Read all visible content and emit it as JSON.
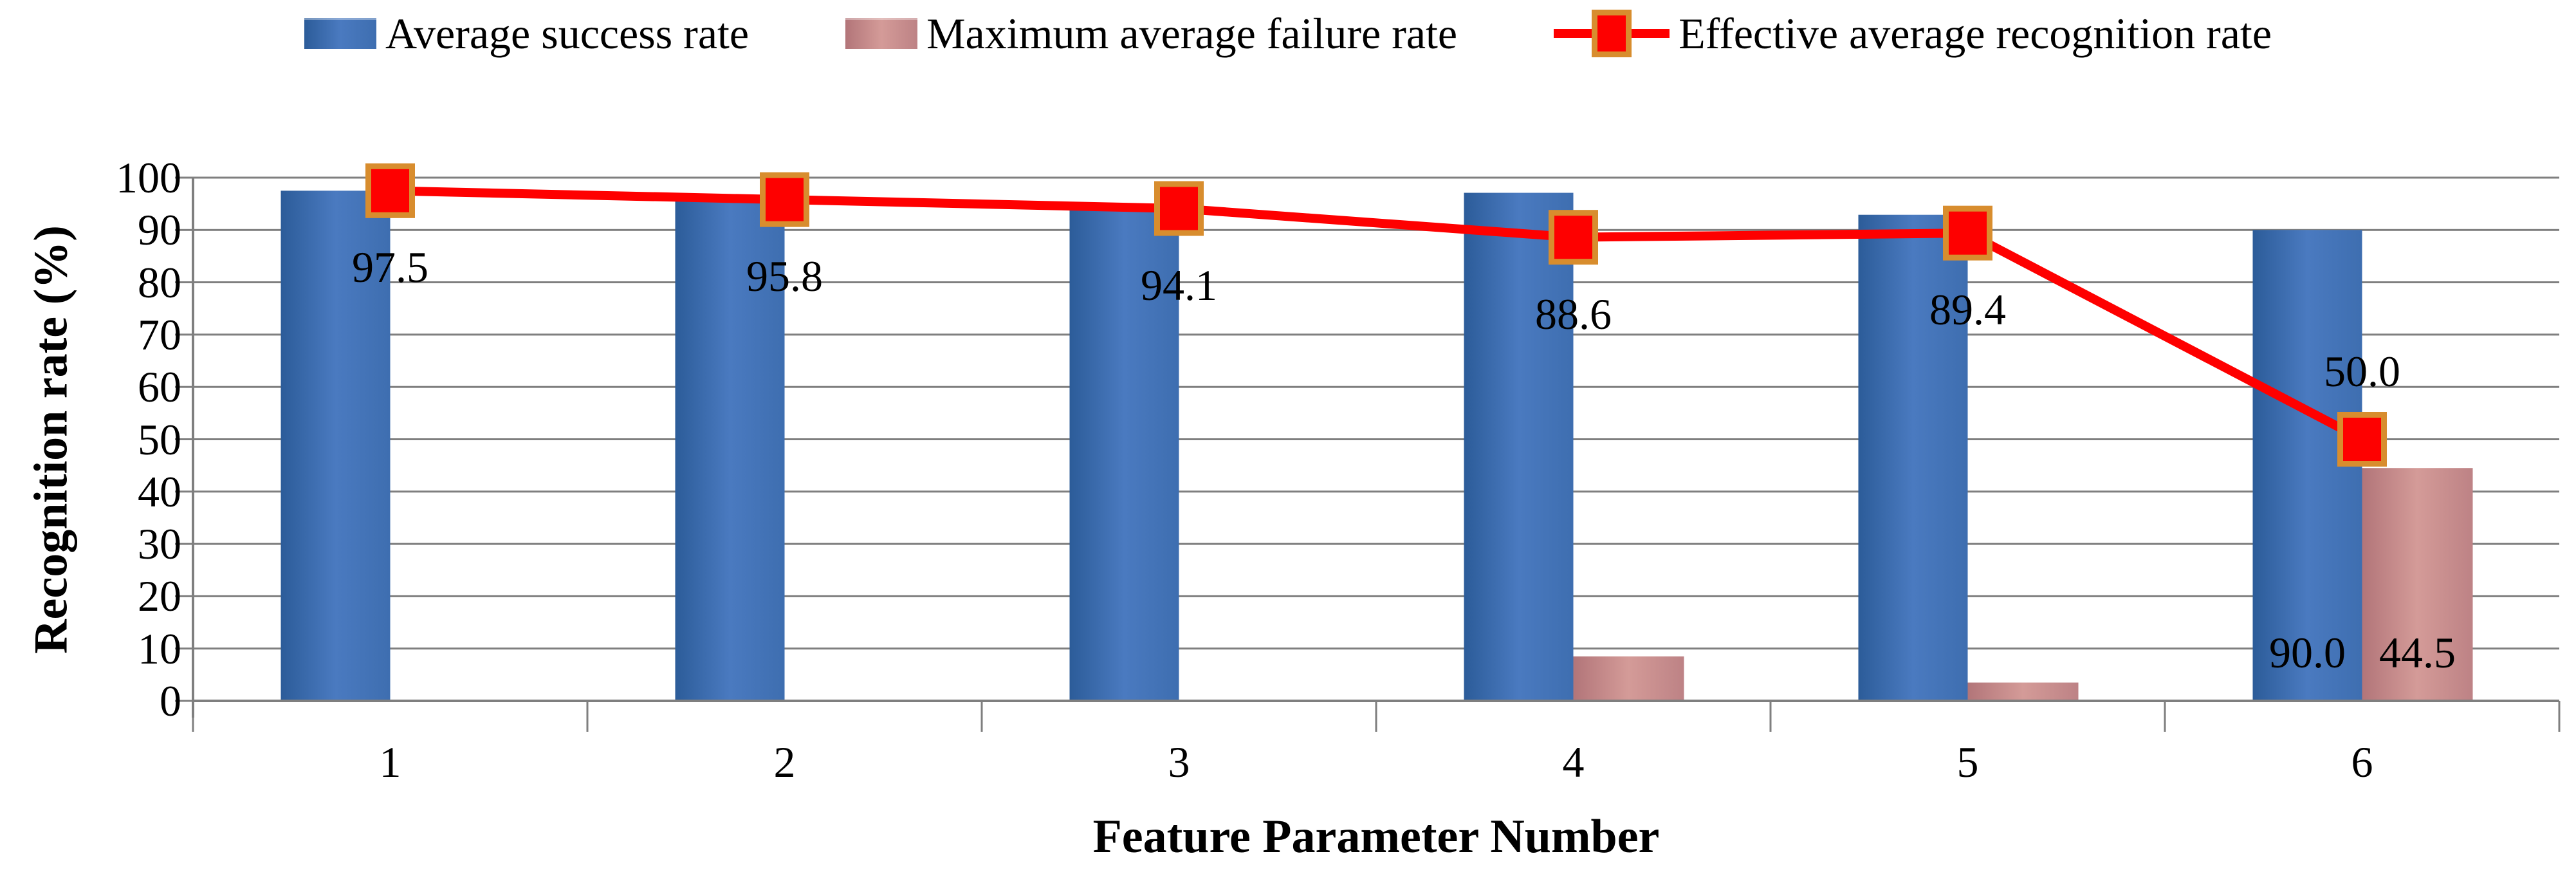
{
  "chart_data": {
    "type": "combo-bar-line",
    "categories": [
      "1",
      "2",
      "3",
      "4",
      "5",
      "6"
    ],
    "xlabel": "Feature Parameter Number",
    "ylabel": "Recognition rate (%)",
    "ylim": [
      0,
      100
    ],
    "ytick_step": 10,
    "grid": true,
    "legend_position": "top-center",
    "colors": {
      "gridline": "#7f7f7f",
      "axis": "#7f7f7f",
      "bar_blue": "#4a7ac0",
      "bar_pink": "#d49b98",
      "line_red": "#fe0000",
      "marker_border": "#d88d2e",
      "text": "#000000"
    },
    "series": [
      {
        "name": "Average success rate",
        "type": "bar",
        "color": "#4a7ac0",
        "values": [
          97.5,
          95.8,
          94.1,
          97.1,
          92.9,
          90.0
        ]
      },
      {
        "name": "Maximum average failure rate",
        "type": "bar",
        "color": "#d49b98",
        "values": [
          0,
          0,
          0,
          8.5,
          3.5,
          44.5
        ]
      },
      {
        "name": "Effective average recognition rate",
        "type": "line",
        "color": "#fe0000",
        "marker": "square",
        "marker_border": "#d88d2e",
        "values": [
          97.5,
          95.8,
          94.1,
          88.6,
          89.4,
          50.0
        ],
        "point_labels": [
          "97.5",
          "95.8",
          "94.1",
          "88.6",
          "89.4",
          "50.0"
        ],
        "label_placement": [
          "below",
          "below",
          "below",
          "below",
          "below",
          "above"
        ]
      }
    ],
    "bar_value_labels": [
      {
        "category_index": 5,
        "series_index": 0,
        "text": "90.0"
      },
      {
        "category_index": 5,
        "series_index": 1,
        "text": "44.5"
      }
    ]
  }
}
